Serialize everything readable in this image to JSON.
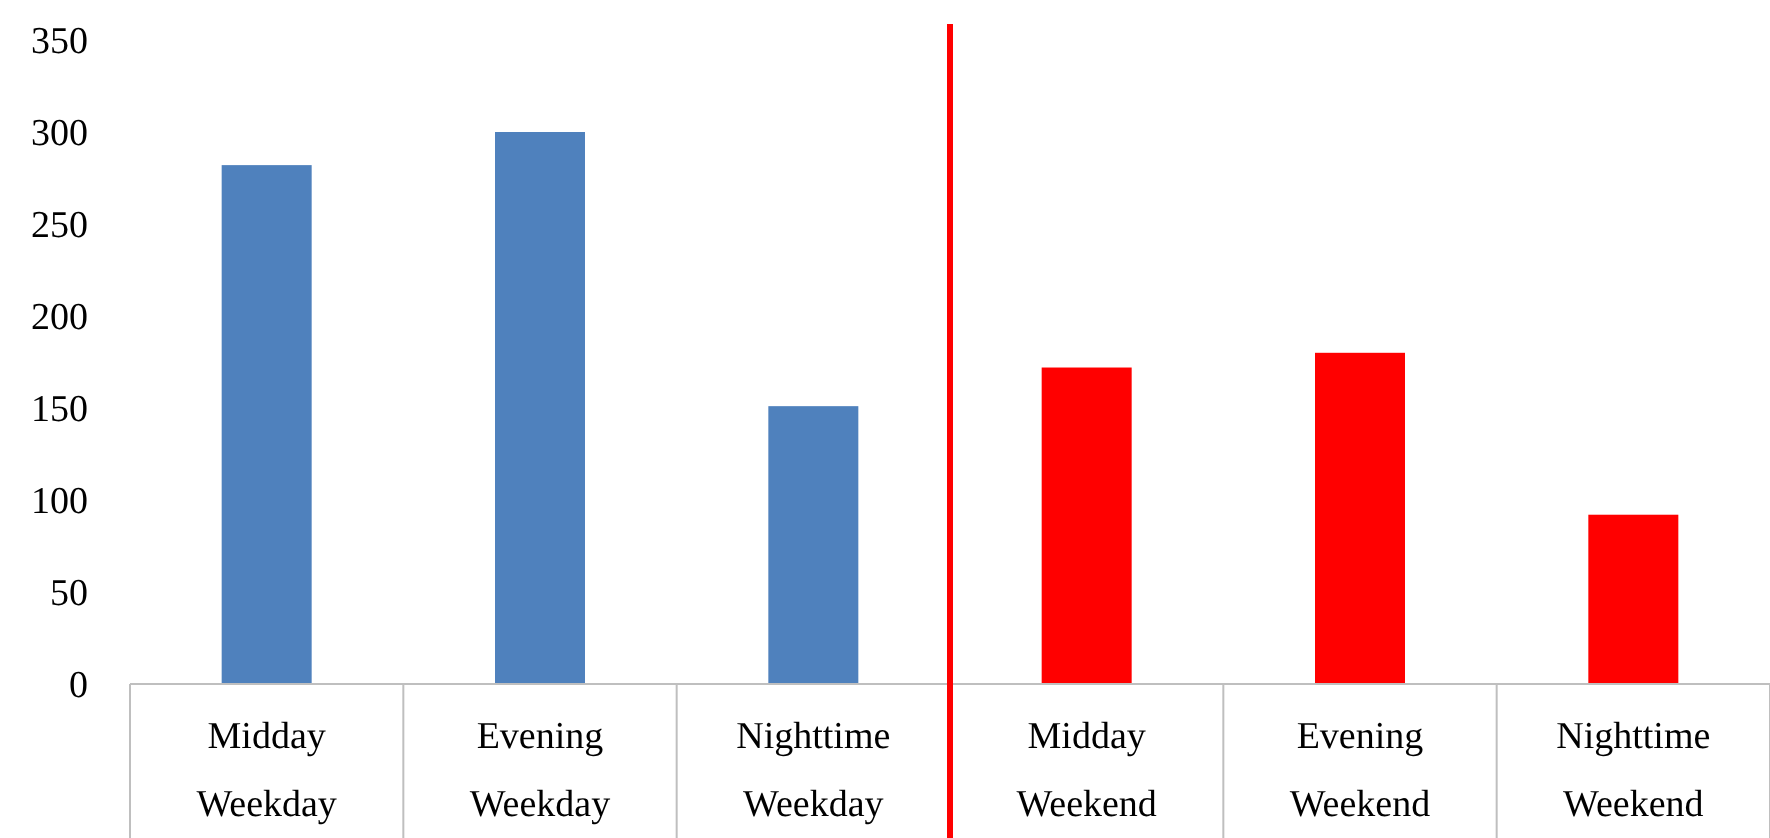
{
  "chart_data": {
    "type": "bar",
    "categories": [
      "Midday Weekday",
      "Evening Weekday",
      "Nighttime Weekday",
      "Midday Weekend",
      "Evening Weekend",
      "Nighttime Weekend"
    ],
    "values": [
      282,
      300,
      151,
      172,
      180,
      92
    ],
    "colors": [
      "#4f81bd",
      "#4f81bd",
      "#4f81bd",
      "#ff0000",
      "#ff0000",
      "#ff0000"
    ],
    "ylim": [
      0,
      350
    ],
    "yticks": [
      0,
      50,
      100,
      150,
      200,
      250,
      300,
      350
    ],
    "ref_lines": [
      {
        "axis": "x",
        "value": "Midday Weekend",
        "color": "#ff0000"
      }
    ],
    "grid": false
  }
}
